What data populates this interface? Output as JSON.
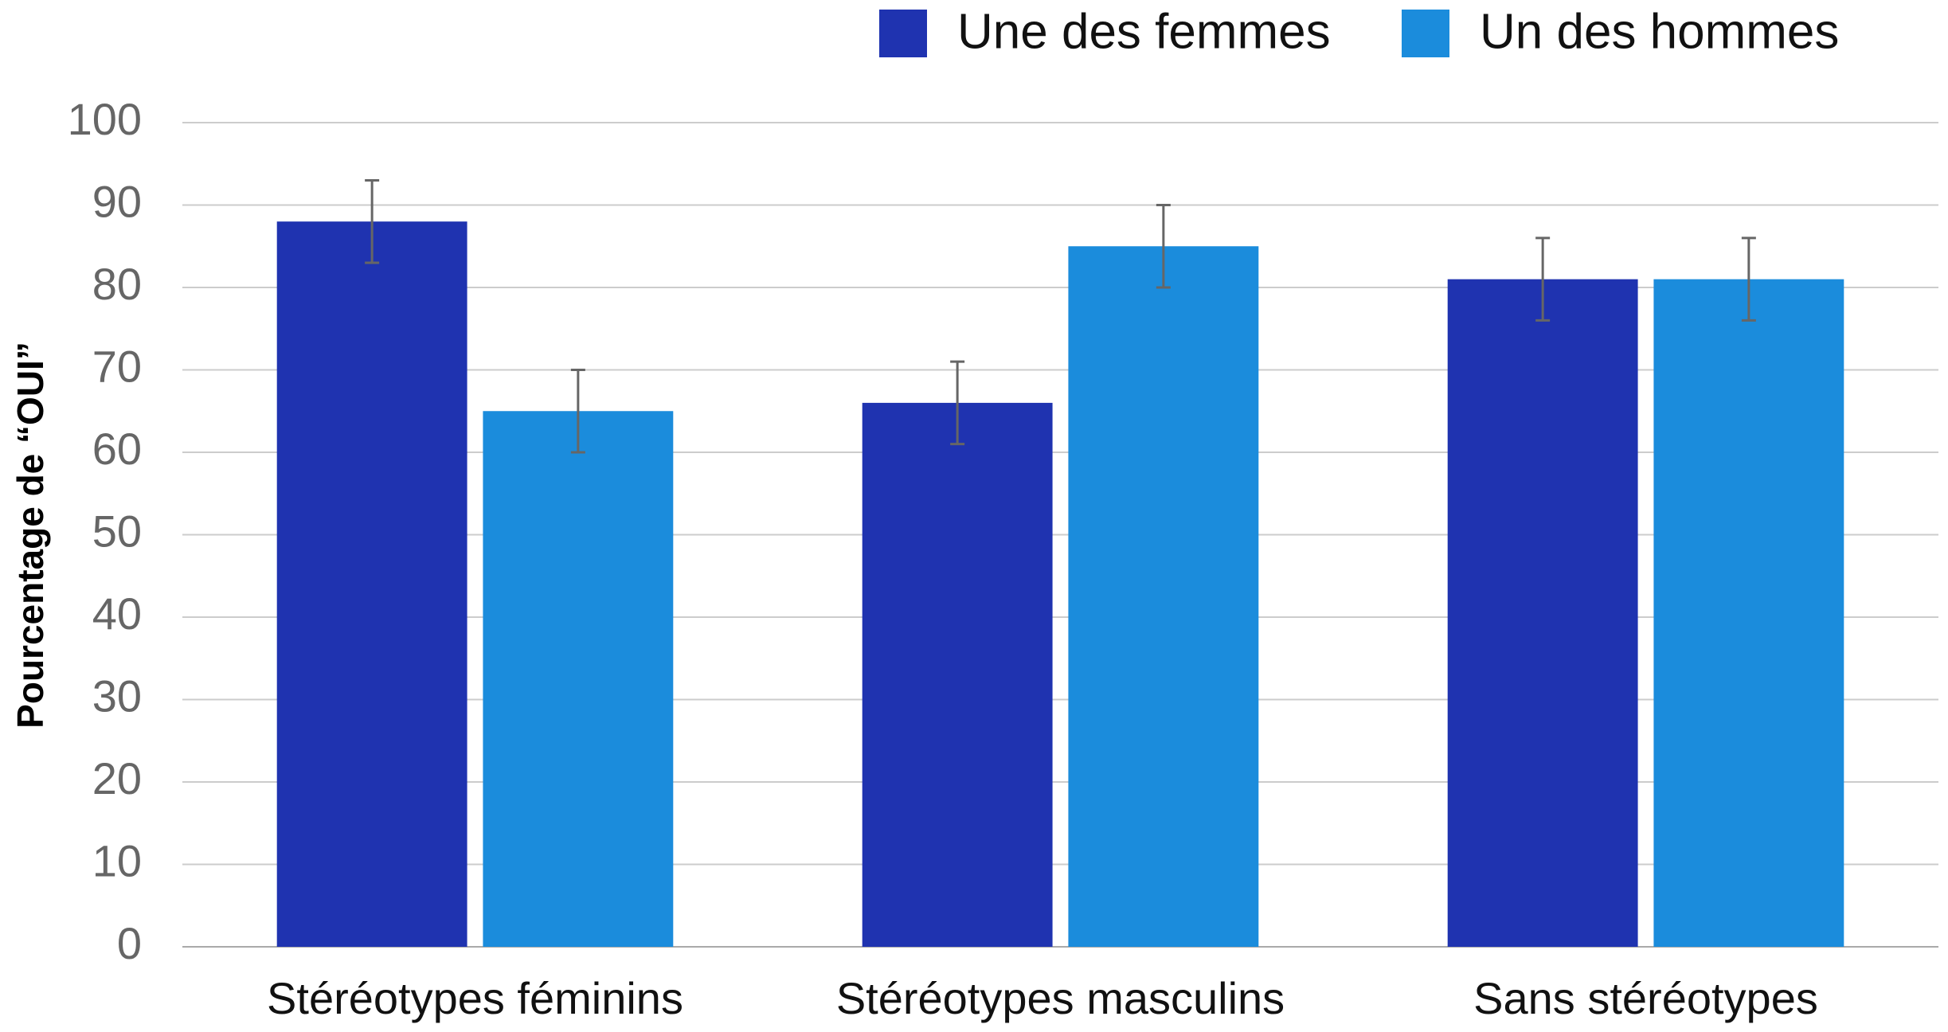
{
  "chart_data": {
    "type": "bar",
    "y_label": "Pourcentage de “OUI”",
    "categories": [
      "Stéréotypes féminins",
      "Stéréotypes masculins",
      "Sans stéréotypes"
    ],
    "series": [
      {
        "name": "Une des femmes",
        "color": "#1f33b0",
        "values": [
          88,
          66,
          81
        ],
        "errors": [
          5,
          5,
          5
        ]
      },
      {
        "name": "Un des hommes",
        "color": "#1b8cdc",
        "values": [
          65,
          85,
          81
        ],
        "errors": [
          5,
          5,
          5
        ]
      }
    ],
    "ylim": [
      0,
      100
    ],
    "yticks": [
      0,
      10,
      20,
      30,
      40,
      50,
      60,
      70,
      80,
      90,
      100
    ],
    "grid": true,
    "legend": "top-right"
  }
}
